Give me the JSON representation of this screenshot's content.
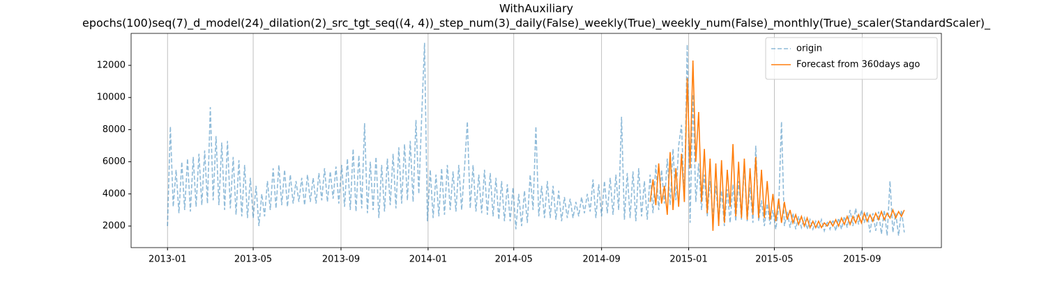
{
  "chart_data": {
    "type": "line",
    "title": "WithAuxiliary",
    "subtitle": "epochs(100)seq(7)_d_model(24)_dilation(2)_src_tgt_seq((4, 4))_step_num(3)_daily(False)_weekly(True)_weekly_num(False)_monthly(True)_scaler(StandardScaler)_",
    "xlim": [
      -51,
      1084
    ],
    "xticks": [
      {
        "value": 0,
        "label": "2013-01"
      },
      {
        "value": 120,
        "label": "2013-05"
      },
      {
        "value": 243,
        "label": "2013-09"
      },
      {
        "value": 365,
        "label": "2014-01"
      },
      {
        "value": 485,
        "label": "2014-05"
      },
      {
        "value": 608,
        "label": "2014-09"
      },
      {
        "value": 730,
        "label": "2015-01"
      },
      {
        "value": 850,
        "label": "2015-05"
      },
      {
        "value": 973,
        "label": "2015-09"
      }
    ],
    "ylim": [
      658,
      13990
    ],
    "yticks": [
      2000,
      4000,
      6000,
      8000,
      10000,
      12000
    ],
    "grid": "x",
    "legend": "upper right",
    "series": [
      {
        "name": "origin",
        "color": "#1f77b4",
        "alpha": 0.5,
        "linestyle": "--",
        "x": [
          0,
          4,
          8,
          12,
          16,
          20,
          24,
          28,
          32,
          36,
          40,
          44,
          48,
          52,
          56,
          60,
          64,
          68,
          72,
          76,
          80,
          84,
          88,
          92,
          96,
          100,
          104,
          108,
          112,
          116,
          120,
          124,
          128,
          132,
          136,
          140,
          144,
          148,
          152,
          156,
          160,
          164,
          168,
          172,
          176,
          180,
          184,
          188,
          192,
          196,
          200,
          204,
          208,
          212,
          216,
          220,
          224,
          228,
          232,
          236,
          240,
          244,
          248,
          252,
          256,
          260,
          264,
          268,
          272,
          276,
          280,
          284,
          288,
          292,
          296,
          300,
          304,
          308,
          312,
          316,
          320,
          324,
          328,
          332,
          336,
          340,
          344,
          348,
          352,
          356,
          360,
          364,
          368,
          372,
          376,
          380,
          384,
          388,
          392,
          396,
          400,
          404,
          408,
          412,
          416,
          420,
          424,
          428,
          432,
          436,
          440,
          444,
          448,
          452,
          456,
          460,
          464,
          468,
          472,
          476,
          480,
          484,
          488,
          492,
          496,
          500,
          504,
          508,
          512,
          516,
          520,
          524,
          528,
          532,
          536,
          540,
          544,
          548,
          552,
          556,
          560,
          564,
          568,
          572,
          576,
          580,
          584,
          588,
          592,
          596,
          600,
          604,
          608,
          612,
          616,
          620,
          624,
          628,
          632,
          636,
          640,
          644,
          648,
          652,
          656,
          660,
          664,
          668,
          672,
          676,
          680,
          684,
          688,
          692,
          696,
          700,
          704,
          708,
          712,
          716,
          720,
          724,
          728,
          732,
          736,
          740,
          744,
          748,
          752,
          756,
          760,
          764,
          768,
          772,
          776,
          780,
          784,
          788,
          792,
          796,
          800,
          804,
          808,
          812,
          816,
          820,
          824,
          828,
          832,
          836,
          840,
          844,
          848,
          852,
          856,
          860,
          864,
          868,
          872,
          876,
          880,
          884,
          888,
          892,
          896,
          900,
          904,
          908,
          912,
          916,
          920,
          924,
          928,
          932,
          936,
          940,
          944,
          948,
          952,
          956,
          960,
          964,
          968,
          972,
          976,
          980,
          984,
          988,
          992,
          996,
          1000,
          1004,
          1008,
          1012,
          1016,
          1020,
          1024,
          1028,
          1032
        ],
        "values": [
          2000,
          8200,
          3200,
          5500,
          2800,
          6000,
          3000,
          6200,
          2900,
          6300,
          3200,
          6500,
          3300,
          6700,
          3400,
          9400,
          3600,
          7600,
          3300,
          7200,
          3000,
          7300,
          3100,
          6300,
          2700,
          6100,
          2600,
          5800,
          2500,
          5000,
          2500,
          4500,
          2000,
          4000,
          2600,
          4800,
          3000,
          5600,
          3100,
          5800,
          3300,
          5500,
          3200,
          5200,
          3400,
          4800,
          3500,
          5000,
          3300,
          5200,
          3500,
          5000,
          3400,
          5300,
          3600,
          5600,
          3500,
          5400,
          3700,
          5700,
          3400,
          5800,
          3200,
          6200,
          3000,
          6800,
          2900,
          6400,
          3100,
          8400,
          2800,
          6000,
          3000,
          6300,
          2500,
          5800,
          2900,
          6200,
          3300,
          6500,
          3100,
          6900,
          3400,
          7100,
          3600,
          7300,
          3500,
          8600,
          4000,
          8800,
          13400,
          2300,
          5500,
          2500,
          5200,
          2600,
          5600,
          2700,
          5800,
          3000,
          5400,
          2900,
          5800,
          3000,
          5600,
          8500,
          3100,
          5800,
          2900,
          5200,
          2800,
          5500,
          2700,
          5300,
          2600,
          5000,
          2400,
          4800,
          2300,
          4600,
          2300,
          4400,
          1800,
          4000,
          2000,
          4200,
          2200,
          5200,
          3000,
          8200,
          2600,
          4500,
          2500,
          4800,
          2500,
          4500,
          2400,
          4200,
          2300,
          3800,
          2500,
          3700,
          2500,
          3500,
          2600,
          3800,
          2800,
          4000,
          2900,
          4900,
          2500,
          4600,
          2600,
          4800,
          2800,
          5000,
          2700,
          5200,
          3000,
          8800,
          2400,
          5300,
          2500,
          5400,
          2300,
          5600,
          2600,
          4800,
          2400,
          5200,
          2800,
          5800,
          3000,
          5500,
          3400,
          6200,
          3300,
          6800,
          3600,
          7000,
          8300,
          3500,
          13300,
          2200,
          10200,
          3500,
          5900,
          3000,
          5200,
          2600,
          4800,
          2600,
          4500,
          2300,
          4200,
          2000,
          4300,
          2200,
          4600,
          2300,
          4800,
          2400,
          5800,
          2300,
          4400,
          2200,
          7000,
          2300,
          3600,
          2000,
          3400,
          2100,
          3000,
          1800,
          3100,
          8500,
          2000,
          2900,
          1900,
          2800,
          1800,
          2600,
          1900,
          2500,
          1800,
          2400,
          1800,
          2300,
          1800,
          2400,
          1700,
          2300,
          1800,
          2400,
          1700,
          2500,
          1800,
          2600,
          1900,
          3000,
          2000,
          3100,
          2100,
          3000,
          2200,
          2900,
          1600,
          2800,
          1700,
          2900,
          1500,
          3000,
          1400,
          4800,
          1600,
          2800,
          1400,
          3000,
          1600
        ]
      },
      {
        "name": "Forecast from 360days ago",
        "color": "#ff7f0e",
        "alpha": 1,
        "linestyle": "-",
        "x": [
          676,
          680,
          684,
          688,
          692,
          696,
          700,
          704,
          708,
          712,
          716,
          720,
          724,
          728,
          732,
          736,
          740,
          744,
          748,
          752,
          756,
          760,
          764,
          768,
          772,
          776,
          780,
          784,
          788,
          792,
          796,
          800,
          804,
          808,
          812,
          816,
          820,
          824,
          828,
          832,
          836,
          840,
          844,
          848,
          852,
          856,
          860,
          864,
          868,
          872,
          876,
          880,
          884,
          888,
          892,
          896,
          900,
          904,
          908,
          912,
          916,
          920,
          924,
          928,
          932,
          936,
          940,
          944,
          948,
          952,
          956,
          960,
          964,
          968,
          972,
          976,
          980,
          984,
          988,
          992,
          996,
          1000,
          1004,
          1008,
          1012,
          1016,
          1020,
          1024,
          1028,
          1032
        ],
        "values": [
          3500,
          4900,
          3300,
          5900,
          3400,
          4500,
          2700,
          6600,
          3000,
          5600,
          3200,
          6500,
          3500,
          11200,
          5600,
          12300,
          6000,
          9100,
          3500,
          6800,
          2800,
          6200,
          1700,
          5900,
          2000,
          6100,
          2200,
          5500,
          3200,
          7100,
          2600,
          6000,
          2500,
          6200,
          2400,
          5600,
          2700,
          6300,
          2500,
          5500,
          2500,
          4800,
          2400,
          4000,
          2300,
          3700,
          2200,
          3500,
          2400,
          3000,
          2200,
          2700,
          2100,
          2600,
          2000,
          2500,
          1900,
          2300,
          1900,
          2300,
          1900,
          2200,
          2000,
          2300,
          2000,
          2400,
          2000,
          2500,
          2100,
          2600,
          2100,
          2600,
          2200,
          2700,
          2200,
          2800,
          2300,
          2700,
          2300,
          2800,
          2400,
          2900,
          2400,
          2800,
          2500,
          3000,
          2500,
          2900,
          2600,
          3000
        ]
      }
    ]
  }
}
